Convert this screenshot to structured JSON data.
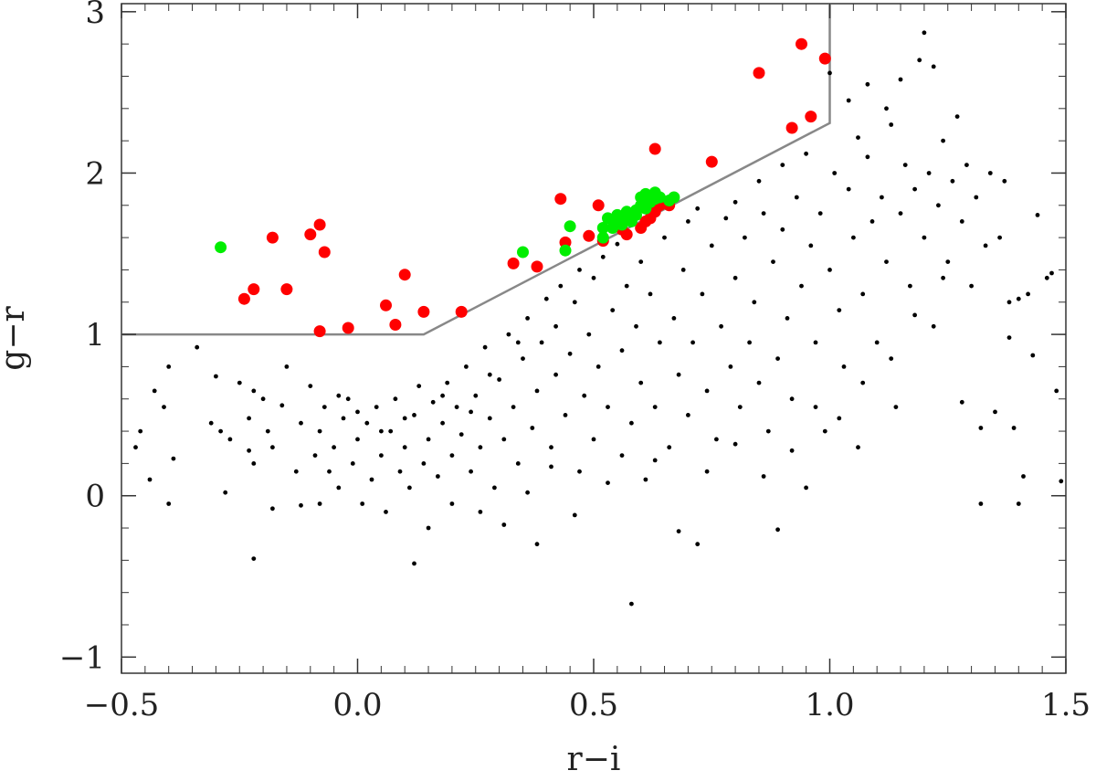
{
  "chart_data": {
    "type": "scatter",
    "title": "",
    "xlabel": "r−i",
    "ylabel": "g−r",
    "xlim": [
      -0.5,
      1.5
    ],
    "ylim": [
      -1.1,
      3.05
    ],
    "grid": false,
    "x_major_ticks": [
      -0.5,
      0.0,
      0.5,
      1.0,
      1.5
    ],
    "x_tick_labels": [
      "−0.5",
      "0.0",
      "0.5",
      "1.0",
      "1.5"
    ],
    "y_major_ticks": [
      -1,
      0,
      1,
      2,
      3
    ],
    "y_tick_labels": [
      "−1",
      "0",
      "1",
      "2",
      "3"
    ],
    "x_minor_step": 0.05,
    "y_minor_step": 0.2,
    "colors": {
      "background_points": "#000000",
      "red_points": "#ff0000",
      "green_points": "#00ee00",
      "selection_line": "#888888",
      "frame": "#333333"
    },
    "selection_boundary": {
      "x": [
        -0.5,
        0.14,
        0.14,
        1.0,
        1.0
      ],
      "y": [
        1.0,
        1.0,
        1.0,
        2.31,
        3.05
      ]
    },
    "series": [
      {
        "marker": "large-circle",
        "color": "#ff0000",
        "points": [
          [
            -0.24,
            1.22
          ],
          [
            -0.22,
            1.28
          ],
          [
            -0.18,
            1.6
          ],
          [
            -0.15,
            1.28
          ],
          [
            -0.1,
            1.62
          ],
          [
            -0.08,
            1.68
          ],
          [
            -0.07,
            1.51
          ],
          [
            -0.08,
            1.02
          ],
          [
            -0.02,
            1.04
          ],
          [
            0.06,
            1.18
          ],
          [
            0.08,
            1.06
          ],
          [
            0.1,
            1.37
          ],
          [
            0.14,
            1.14
          ],
          [
            0.22,
            1.14
          ],
          [
            0.33,
            1.44
          ],
          [
            0.38,
            1.42
          ],
          [
            0.43,
            1.84
          ],
          [
            0.44,
            1.57
          ],
          [
            0.49,
            1.61
          ],
          [
            0.51,
            1.8
          ],
          [
            0.52,
            1.58
          ],
          [
            0.56,
            1.65
          ],
          [
            0.57,
            1.62
          ],
          [
            0.6,
            1.66
          ],
          [
            0.61,
            1.7
          ],
          [
            0.62,
            1.72
          ],
          [
            0.63,
            1.76
          ],
          [
            0.64,
            1.8
          ],
          [
            0.66,
            1.8
          ],
          [
            0.63,
            2.15
          ],
          [
            0.75,
            2.07
          ],
          [
            0.85,
            2.62
          ],
          [
            0.92,
            2.28
          ],
          [
            0.94,
            2.8
          ],
          [
            0.96,
            2.35
          ],
          [
            0.99,
            2.71
          ]
        ]
      },
      {
        "marker": "large-circle",
        "color": "#00ee00",
        "points": [
          [
            -0.29,
            1.54
          ],
          [
            0.35,
            1.51
          ],
          [
            0.44,
            1.52
          ],
          [
            0.45,
            1.67
          ],
          [
            0.52,
            1.6
          ],
          [
            0.52,
            1.66
          ],
          [
            0.53,
            1.72
          ],
          [
            0.54,
            1.66
          ],
          [
            0.55,
            1.7
          ],
          [
            0.55,
            1.74
          ],
          [
            0.56,
            1.68
          ],
          [
            0.57,
            1.72
          ],
          [
            0.57,
            1.76
          ],
          [
            0.58,
            1.7
          ],
          [
            0.59,
            1.74
          ],
          [
            0.59,
            1.77
          ],
          [
            0.6,
            1.8
          ],
          [
            0.6,
            1.85
          ],
          [
            0.61,
            1.78
          ],
          [
            0.61,
            1.87
          ],
          [
            0.62,
            1.82
          ],
          [
            0.63,
            1.84
          ],
          [
            0.63,
            1.88
          ],
          [
            0.64,
            1.85
          ],
          [
            0.66,
            1.83
          ],
          [
            0.67,
            1.85
          ]
        ]
      },
      {
        "marker": "small-dot",
        "color": "#000000",
        "points": [
          [
            -0.47,
            0.3
          ],
          [
            -0.46,
            0.4
          ],
          [
            -0.44,
            0.1
          ],
          [
            -0.43,
            0.65
          ],
          [
            -0.41,
            0.55
          ],
          [
            -0.4,
            -0.05
          ],
          [
            -0.4,
            0.8
          ],
          [
            -0.39,
            0.23
          ],
          [
            -0.34,
            0.92
          ],
          [
            -0.31,
            0.45
          ],
          [
            -0.3,
            0.74
          ],
          [
            -0.29,
            0.4
          ],
          [
            -0.28,
            0.02
          ],
          [
            -0.27,
            0.35
          ],
          [
            -0.25,
            0.7
          ],
          [
            -0.23,
            0.28
          ],
          [
            -0.23,
            0.48
          ],
          [
            -0.22,
            0.2
          ],
          [
            -0.22,
            0.65
          ],
          [
            -0.22,
            -0.39
          ],
          [
            -0.2,
            0.6
          ],
          [
            -0.19,
            0.4
          ],
          [
            -0.18,
            0.3
          ],
          [
            -0.18,
            -0.08
          ],
          [
            -0.16,
            0.56
          ],
          [
            -0.15,
            0.8
          ],
          [
            -0.13,
            0.15
          ],
          [
            -0.12,
            0.45
          ],
          [
            -0.12,
            -0.06
          ],
          [
            -0.1,
            0.68
          ],
          [
            -0.09,
            0.25
          ],
          [
            -0.08,
            0.4
          ],
          [
            -0.08,
            -0.05
          ],
          [
            -0.07,
            0.55
          ],
          [
            -0.06,
            0.15
          ],
          [
            -0.05,
            0.3
          ],
          [
            -0.04,
            0.05
          ],
          [
            -0.03,
            0.48
          ],
          [
            -0.02,
            0.6
          ],
          [
            -0.01,
            0.2
          ],
          [
            0.0,
            0.35
          ],
          [
            0.01,
            -0.05
          ],
          [
            0.02,
            0.45
          ],
          [
            0.03,
            0.1
          ],
          [
            0.04,
            0.55
          ],
          [
            0.05,
            0.25
          ],
          [
            0.06,
            -0.1
          ],
          [
            0.07,
            0.4
          ],
          [
            0.08,
            0.6
          ],
          [
            0.09,
            0.15
          ],
          [
            0.1,
            0.3
          ],
          [
            0.11,
            0.05
          ],
          [
            0.12,
            0.5
          ],
          [
            0.12,
            -0.42
          ],
          [
            0.13,
            0.68
          ],
          [
            0.14,
            0.2
          ],
          [
            0.15,
            0.35
          ],
          [
            0.15,
            -0.2
          ],
          [
            0.16,
            0.58
          ],
          [
            0.17,
            0.12
          ],
          [
            0.18,
            0.45
          ],
          [
            0.19,
            0.7
          ],
          [
            0.2,
            0.25
          ],
          [
            0.2,
            -0.05
          ],
          [
            0.21,
            0.55
          ],
          [
            0.22,
            0.38
          ],
          [
            0.23,
            0.8
          ],
          [
            0.24,
            0.15
          ],
          [
            0.25,
            0.62
          ],
          [
            0.26,
            0.3
          ],
          [
            0.27,
            0.92
          ],
          [
            0.28,
            0.48
          ],
          [
            0.29,
            0.05
          ],
          [
            0.3,
            0.72
          ],
          [
            0.31,
            0.35
          ],
          [
            0.32,
            1.0
          ],
          [
            0.33,
            0.55
          ],
          [
            0.34,
            0.2
          ],
          [
            0.35,
            0.85
          ],
          [
            0.36,
            1.1
          ],
          [
            0.37,
            0.42
          ],
          [
            0.38,
            0.65
          ],
          [
            0.38,
            -0.3
          ],
          [
            0.39,
            0.95
          ],
          [
            0.4,
            1.22
          ],
          [
            0.41,
            0.3
          ],
          [
            0.42,
            0.75
          ],
          [
            0.42,
            1.05
          ],
          [
            0.43,
            1.3
          ],
          [
            0.44,
            0.5
          ],
          [
            0.45,
            0.88
          ],
          [
            0.46,
            1.2
          ],
          [
            0.47,
            0.15
          ],
          [
            0.47,
            1.4
          ],
          [
            0.48,
            0.62
          ],
          [
            0.49,
            1.0
          ],
          [
            0.5,
            1.35
          ],
          [
            0.5,
            0.35
          ],
          [
            0.51,
            0.8
          ],
          [
            0.52,
            1.48
          ],
          [
            0.53,
            0.55
          ],
          [
            0.54,
            1.15
          ],
          [
            0.55,
            1.56
          ],
          [
            0.56,
            0.25
          ],
          [
            0.56,
            0.9
          ],
          [
            0.57,
            1.3
          ],
          [
            0.58,
            0.45
          ],
          [
            0.58,
            -0.67
          ],
          [
            0.59,
            1.05
          ],
          [
            0.6,
            1.45
          ],
          [
            0.6,
            0.7
          ],
          [
            0.61,
            0.1
          ],
          [
            0.62,
            1.25
          ],
          [
            0.63,
            0.55
          ],
          [
            0.64,
            0.95
          ],
          [
            0.65,
            1.6
          ],
          [
            0.66,
            0.3
          ],
          [
            0.67,
            1.1
          ],
          [
            0.68,
            0.75
          ],
          [
            0.69,
            1.4
          ],
          [
            0.7,
            0.5
          ],
          [
            0.7,
            1.7
          ],
          [
            0.71,
            0.95
          ],
          [
            0.72,
            -0.3
          ],
          [
            0.73,
            1.25
          ],
          [
            0.74,
            0.65
          ],
          [
            0.75,
            1.55
          ],
          [
            0.76,
            0.35
          ],
          [
            0.77,
            1.05
          ],
          [
            0.78,
            1.72
          ],
          [
            0.79,
            0.8
          ],
          [
            0.8,
            1.35
          ],
          [
            0.81,
            0.55
          ],
          [
            0.82,
            1.6
          ],
          [
            0.83,
            0.95
          ],
          [
            0.84,
            1.2
          ],
          [
            0.85,
            0.7
          ],
          [
            0.86,
            1.75
          ],
          [
            0.87,
            0.4
          ],
          [
            0.88,
            1.45
          ],
          [
            0.89,
            0.85
          ],
          [
            0.89,
            -0.21
          ],
          [
            0.9,
            1.65
          ],
          [
            0.91,
            1.1
          ],
          [
            0.92,
            0.6
          ],
          [
            0.93,
            1.85
          ],
          [
            0.94,
            1.3
          ],
          [
            0.95,
            0.05
          ],
          [
            0.96,
            1.55
          ],
          [
            0.97,
            0.95
          ],
          [
            0.98,
            1.75
          ],
          [
            0.99,
            0.4
          ],
          [
            1.0,
            1.4
          ],
          [
            1.01,
            2.0
          ],
          [
            1.02,
            1.15
          ],
          [
            1.03,
            0.8
          ],
          [
            1.04,
            1.9
          ],
          [
            1.05,
            1.6
          ],
          [
            1.06,
            0.3
          ],
          [
            1.07,
            1.25
          ],
          [
            1.08,
            2.1
          ],
          [
            1.09,
            1.7
          ],
          [
            1.1,
            0.95
          ],
          [
            1.11,
            1.85
          ],
          [
            1.12,
            1.45
          ],
          [
            1.13,
            2.3
          ],
          [
            1.14,
            0.55
          ],
          [
            1.15,
            1.75
          ],
          [
            1.16,
            2.05
          ],
          [
            1.17,
            1.3
          ],
          [
            1.18,
            1.9
          ],
          [
            1.19,
            2.7
          ],
          [
            1.2,
            1.6
          ],
          [
            1.2,
            2.87
          ],
          [
            1.21,
            2.0
          ],
          [
            1.22,
            1.05
          ],
          [
            1.23,
            1.8
          ],
          [
            1.24,
            2.2
          ],
          [
            1.25,
            1.45
          ],
          [
            1.26,
            1.95
          ],
          [
            1.27,
            2.35
          ],
          [
            1.28,
            1.7
          ],
          [
            1.29,
            2.05
          ],
          [
            1.3,
            1.3
          ],
          [
            1.31,
            1.85
          ],
          [
            1.32,
            0.42
          ],
          [
            1.32,
            -0.05
          ],
          [
            1.33,
            1.55
          ],
          [
            1.34,
            2.0
          ],
          [
            1.36,
            1.6
          ],
          [
            1.37,
            1.95
          ],
          [
            1.38,
            1.2
          ],
          [
            1.38,
            0.98
          ],
          [
            1.39,
            0.42
          ],
          [
            1.4,
            1.22
          ],
          [
            1.4,
            -0.05
          ],
          [
            1.41,
            0.12
          ],
          [
            1.42,
            1.25
          ],
          [
            1.43,
            0.87
          ],
          [
            1.44,
            1.74
          ],
          [
            1.46,
            1.35
          ],
          [
            1.47,
            1.38
          ],
          [
            1.48,
            0.65
          ],
          [
            1.49,
            0.09
          ],
          [
            1.0,
            2.62
          ],
          [
            1.08,
            2.55
          ],
          [
            1.15,
            2.58
          ],
          [
            1.22,
            2.66
          ],
          [
            1.04,
            2.45
          ],
          [
            0.95,
            2.12
          ],
          [
            1.06,
            2.22
          ],
          [
            1.12,
            2.4
          ],
          [
            0.85,
            1.95
          ],
          [
            0.9,
            2.05
          ],
          [
            0.8,
            1.82
          ],
          [
            0.72,
            1.78
          ],
          [
            0.34,
            0.95
          ],
          [
            0.28,
            0.75
          ],
          [
            0.24,
            0.52
          ],
          [
            0.18,
            0.62
          ],
          [
            0.1,
            0.48
          ],
          [
            0.05,
            0.4
          ],
          [
            0.0,
            0.52
          ],
          [
            -0.04,
            0.62
          ],
          [
            0.26,
            -0.1
          ],
          [
            0.31,
            -0.18
          ],
          [
            0.36,
            0.02
          ],
          [
            0.41,
            0.18
          ],
          [
            0.46,
            -0.12
          ],
          [
            0.53,
            0.08
          ],
          [
            0.63,
            0.22
          ],
          [
            0.68,
            -0.22
          ],
          [
            0.74,
            0.15
          ],
          [
            0.8,
            0.32
          ],
          [
            0.86,
            0.12
          ],
          [
            0.92,
            0.28
          ],
          [
            0.97,
            0.55
          ],
          [
            1.02,
            0.48
          ],
          [
            1.07,
            0.7
          ],
          [
            1.13,
            0.85
          ],
          [
            1.18,
            1.12
          ],
          [
            1.24,
            1.35
          ],
          [
            1.28,
            0.58
          ],
          [
            1.35,
            0.52
          ]
        ]
      }
    ]
  }
}
